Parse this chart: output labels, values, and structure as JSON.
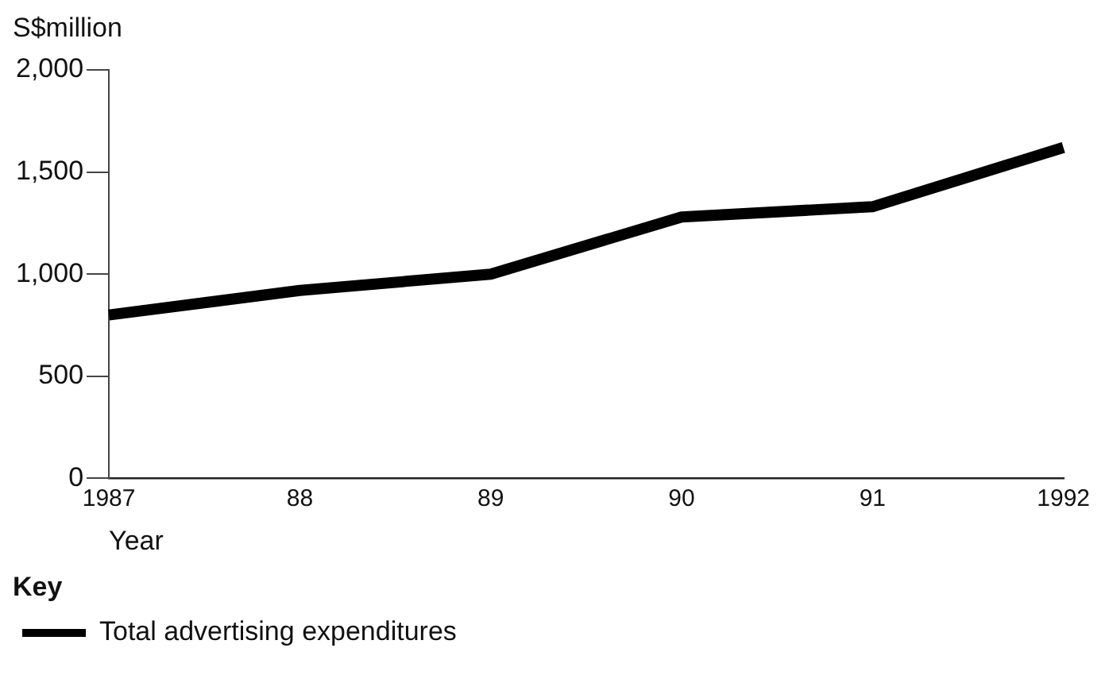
{
  "chart_data": {
    "type": "line",
    "ylabel": "S$million",
    "xlabel": "Year",
    "legend_title": "Key",
    "categories": [
      "1987",
      "88",
      "89",
      "90",
      "91",
      "1992"
    ],
    "series": [
      {
        "name": "Total advertising expenditures",
        "color": "#000000",
        "values": [
          800,
          920,
          1000,
          1280,
          1330,
          1620
        ]
      }
    ],
    "ylim": [
      0,
      2000
    ],
    "yticks": [
      0,
      500,
      {
        "value": 1000,
        "label": "1,000"
      },
      {
        "value": 1500,
        "label": "1,500"
      },
      {
        "value": 2000,
        "label": "2,000"
      }
    ],
    "grid": false,
    "legend": "bottom",
    "marker": "none",
    "line_style": "solid"
  }
}
